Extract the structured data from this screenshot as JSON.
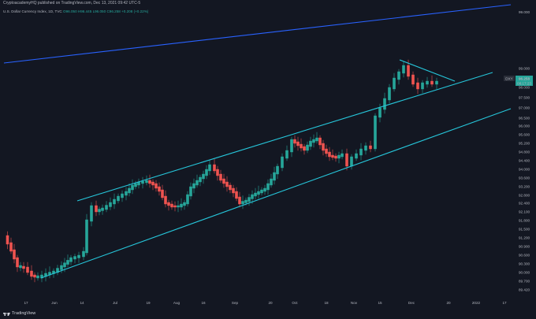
{
  "header": {
    "publisher_text": "CryptoacademyHQ published on TradingView.com, Dec 13, 2021 09:42 UTC-5"
  },
  "legend": {
    "symbol_text": "U.S. Dollar Currency Index, 1D, TVC",
    "open": "O96.050",
    "high": "H96.445",
    "low": "L96.050",
    "close": "C96.258",
    "change": "+0.208 (+0.22%)"
  },
  "footer": {
    "brand": "TradingView",
    "brand_icon": "tradingview-logo-icon"
  },
  "price_labels": {
    "symbol_tag": "DXY",
    "last_price": "96.258",
    "countdown": "08:17:23"
  },
  "colors": {
    "background": "#131722",
    "up": "#26a69a",
    "down": "#ef5350",
    "trendline": "#26c6da",
    "upper_line": "#2962ff",
    "grid": "#1e222d",
    "axis_text": "#b2b5be"
  },
  "chart_data": {
    "type": "candlestick",
    "title": "U.S. Dollar Currency Index, 1D, TVC",
    "ylim": [
      89.3,
      99.3
    ],
    "y_ticks": [
      "89.420",
      "89.700",
      "90.000",
      "90.300",
      "90.600",
      "90.900",
      "91.200",
      "91.500",
      "91.800",
      "92.100",
      "92.400",
      "92.800",
      "93.200",
      "93.600",
      "94.000",
      "94.400",
      "94.800",
      "95.200",
      "95.600",
      "96.000",
      "96.500",
      "97.000",
      "97.500",
      "98.000",
      "98.500",
      "99.000"
    ],
    "x_ticks": [
      "17",
      "Jun",
      "14",
      "Jul",
      "19",
      "Aug",
      "16",
      "Sep",
      "20",
      "Oct",
      "18",
      "Nov",
      "15",
      "Dec",
      "20",
      "2022",
      "17"
    ],
    "grid": false,
    "last_price": 96.258
  }
}
